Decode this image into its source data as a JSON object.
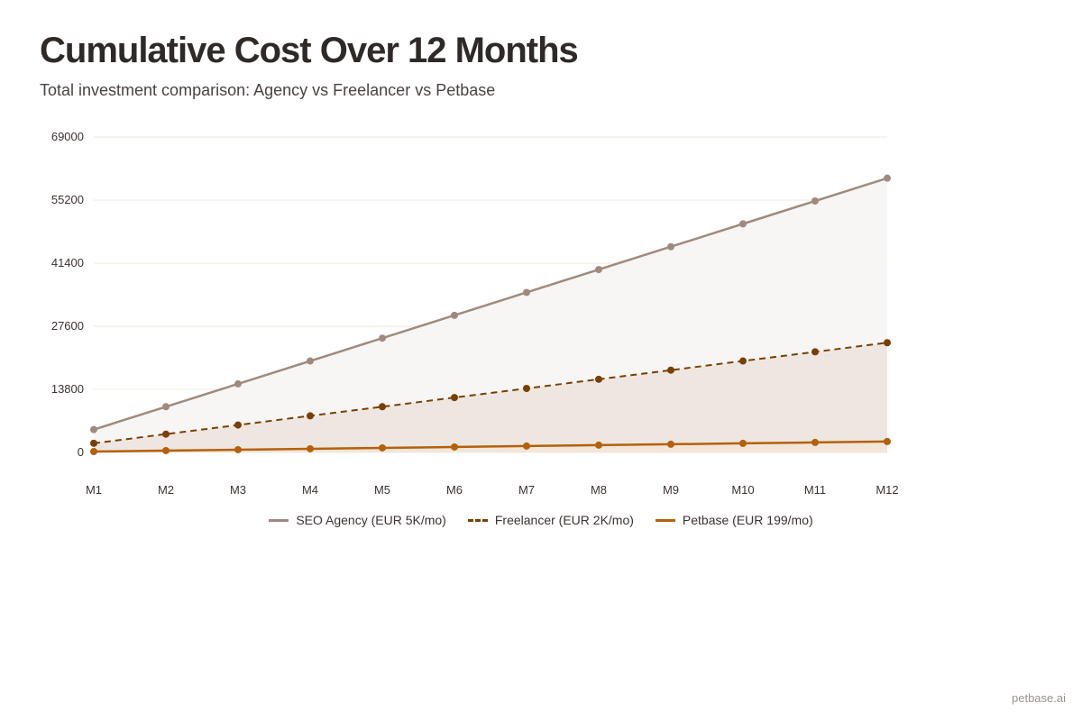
{
  "chart_data": {
    "type": "area",
    "title": "Cumulative Cost Over 12 Months",
    "subtitle": "Total investment comparison: Agency vs Freelancer vs Petbase",
    "categories": [
      "M1",
      "M2",
      "M3",
      "M4",
      "M5",
      "M6",
      "M7",
      "M8",
      "M9",
      "M10",
      "M11",
      "M12"
    ],
    "ylim": [
      0,
      69000
    ],
    "yticks": [
      "0",
      "13800",
      "27600",
      "41400",
      "55200",
      "69000"
    ],
    "grid": true,
    "legend_position": "bottom",
    "series": [
      {
        "name": "SEO Agency (EUR 5K/mo)",
        "color": "#a08a7f",
        "dash": false,
        "values": [
          5000,
          10000,
          15000,
          20000,
          25000,
          30000,
          35000,
          40000,
          45000,
          50000,
          55000,
          60000
        ]
      },
      {
        "name": "Freelancer (EUR 2K/mo)",
        "color": "#7a3f05",
        "dash": true,
        "values": [
          2000,
          4000,
          6000,
          8000,
          10000,
          12000,
          14000,
          16000,
          18000,
          20000,
          22000,
          24000
        ]
      },
      {
        "name": "Petbase (EUR 199/mo)",
        "color": "#b5600c",
        "dash": false,
        "values": [
          199,
          398,
          597,
          796,
          995,
          1194,
          1393,
          1592,
          1791,
          1990,
          2189,
          2388
        ]
      }
    ]
  },
  "footer": {
    "brand": "petbase.ai"
  }
}
